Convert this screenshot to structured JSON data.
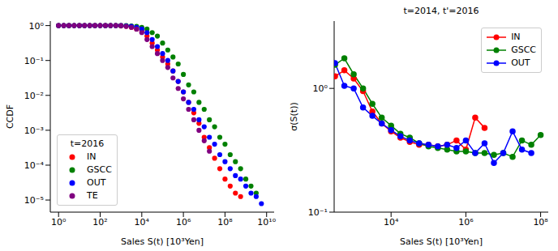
{
  "chart_data": [
    {
      "type": "scatter",
      "x_label": "Sales S(t) [10³Yen]",
      "y_label": "CCDF",
      "log": true,
      "legend": "lower left",
      "legend_title": "t=2016",
      "marker": "circle",
      "xlim": [
        0.4,
        23000000000
      ],
      "ylim": [
        4.5e-06,
        1.35
      ],
      "xticks": [
        {
          "value": 1,
          "label": "10⁰"
        },
        {
          "value": 100,
          "label": "10²"
        },
        {
          "value": 10000,
          "label": "10⁴"
        },
        {
          "value": 1000000,
          "label": "10⁶"
        },
        {
          "value": 100000000,
          "label": "10⁸"
        },
        {
          "value": 10000000000,
          "label": "10¹⁰"
        }
      ],
      "yticks": [
        {
          "value": 1e-05,
          "label": "10⁻⁵"
        },
        {
          "value": 0.0001,
          "label": "10⁻⁴"
        },
        {
          "value": 0.001,
          "label": "10⁻³"
        },
        {
          "value": 0.01,
          "label": "10⁻²"
        },
        {
          "value": 0.1,
          "label": "10⁻¹"
        },
        {
          "value": 1,
          "label": "10⁰"
        }
      ],
      "x": [
        1,
        1.78,
        3.16,
        5.62,
        10,
        17.8,
        31.6,
        56.2,
        100,
        178,
        316,
        562,
        1000,
        1778,
        3162,
        5623,
        10000,
        17783,
        31623,
        56234,
        100000,
        177828,
        316228,
        562341,
        1000000,
        1778279,
        3162278,
        5623413,
        10000000,
        17782794,
        31622777,
        56234133,
        100000000,
        177827941,
        316227766,
        562341325,
        1000000000,
        1778279410,
        3162277660,
        5623413252
      ],
      "series": [
        {
          "name": "IN",
          "color": "#ff0000",
          "values": [
            1,
            1,
            1,
            1,
            1,
            1,
            1,
            1,
            1,
            1,
            1,
            1,
            0.977,
            0.955,
            0.891,
            0.794,
            0.708,
            0.501,
            0.316,
            0.2,
            0.126,
            0.0794,
            0.0501,
            0.0251,
            0.0126,
            0.00631,
            0.00316,
            0.00158,
            0.000631,
            0.000316,
            0.000158,
            7.94e-05,
            3.98e-05,
            2.51e-05,
            1.58e-05,
            1.26e-05,
            null,
            null,
            null,
            null
          ]
        },
        {
          "name": "GSCC",
          "color": "#008000",
          "values": [
            1,
            1,
            1,
            1,
            1,
            1,
            1,
            1,
            1,
            1,
            1,
            1,
            1,
            1,
            0.977,
            0.955,
            0.891,
            0.794,
            0.631,
            0.501,
            0.316,
            0.2,
            0.126,
            0.0794,
            0.0398,
            0.02,
            0.0126,
            0.00631,
            0.00398,
            0.002,
            0.00126,
            0.000631,
            0.000398,
            0.0002,
            0.000126,
            7.94e-05,
            3.98e-05,
            2.51e-05,
            1.58e-05,
            null
          ]
        },
        {
          "name": "OUT",
          "color": "#0000ff",
          "values": [
            1,
            1,
            1,
            1,
            1,
            1,
            1,
            1,
            1,
            1,
            1,
            1,
            1,
            0.977,
            0.955,
            0.891,
            0.794,
            0.631,
            0.398,
            0.251,
            0.158,
            0.1,
            0.0501,
            0.0251,
            0.0126,
            0.00631,
            0.00398,
            0.002,
            0.00126,
            0.000631,
            0.000398,
            0.0002,
            0.000126,
            7.94e-05,
            5.01e-05,
            3.98e-05,
            2.51e-05,
            1.58e-05,
            1.26e-05,
            7.9e-06
          ]
        },
        {
          "name": "TE",
          "color": "#800080",
          "values": [
            1,
            1,
            1,
            1,
            1,
            1,
            1,
            1,
            1,
            1,
            1,
            1,
            1,
            0.955,
            0.891,
            0.794,
            0.631,
            0.398,
            0.251,
            0.158,
            0.1,
            0.0631,
            0.0316,
            0.0158,
            0.00794,
            0.00398,
            0.002,
            0.001,
            0.000501,
            0.000251,
            null,
            null,
            null,
            null,
            null,
            null,
            null,
            null,
            null,
            null
          ]
        }
      ]
    },
    {
      "type": "line",
      "title": "t=2014, t'=2016",
      "x_label": "Sales S(t) [10³Yen]",
      "y_label": "σ(S(t))",
      "log": true,
      "legend": "upper right",
      "marker": "circle",
      "line_style": "solid",
      "xlim": [
        300,
        160000000
      ],
      "ylim": [
        0.1,
        3.5
      ],
      "xticks": [
        {
          "value": 10000,
          "label": "10⁴"
        },
        {
          "value": 1000000,
          "label": "10⁶"
        },
        {
          "value": 100000000,
          "label": "10⁸"
        }
      ],
      "yticks": [
        {
          "value": 0.1,
          "label": "10⁻¹"
        },
        {
          "value": 1,
          "label": "10⁰"
        }
      ],
      "x": [
        316,
        562,
        1000,
        1778,
        3162,
        5623,
        10000,
        17783,
        31623,
        56234,
        100000,
        177828,
        316228,
        562341,
        1000000,
        1778279,
        3162278,
        5623413,
        10000000,
        17782794,
        31622777,
        56234133,
        100000000
      ],
      "series": [
        {
          "name": "IN",
          "color": "#ff0000",
          "values": [
            1.25,
            1.4,
            1.2,
            0.95,
            0.65,
            0.52,
            0.45,
            0.4,
            0.37,
            0.35,
            0.35,
            0.34,
            0.35,
            0.38,
            0.32,
            0.58,
            0.48,
            null,
            null,
            null,
            null,
            null,
            null
          ]
        },
        {
          "name": "GSCC",
          "color": "#008000",
          "values": [
            1.55,
            1.75,
            1.3,
            1.0,
            0.75,
            0.58,
            0.5,
            0.43,
            0.4,
            0.36,
            0.34,
            0.33,
            0.32,
            0.31,
            0.31,
            0.3,
            0.3,
            0.29,
            0.3,
            0.28,
            0.38,
            0.35,
            0.42
          ]
        },
        {
          "name": "OUT",
          "color": "#0000ff",
          "values": [
            1.6,
            1.05,
            1.0,
            0.7,
            0.6,
            0.52,
            0.46,
            0.41,
            0.38,
            0.36,
            0.35,
            0.34,
            0.35,
            0.33,
            0.38,
            0.3,
            0.36,
            0.25,
            0.3,
            0.45,
            0.32,
            0.3,
            null
          ]
        }
      ]
    }
  ]
}
